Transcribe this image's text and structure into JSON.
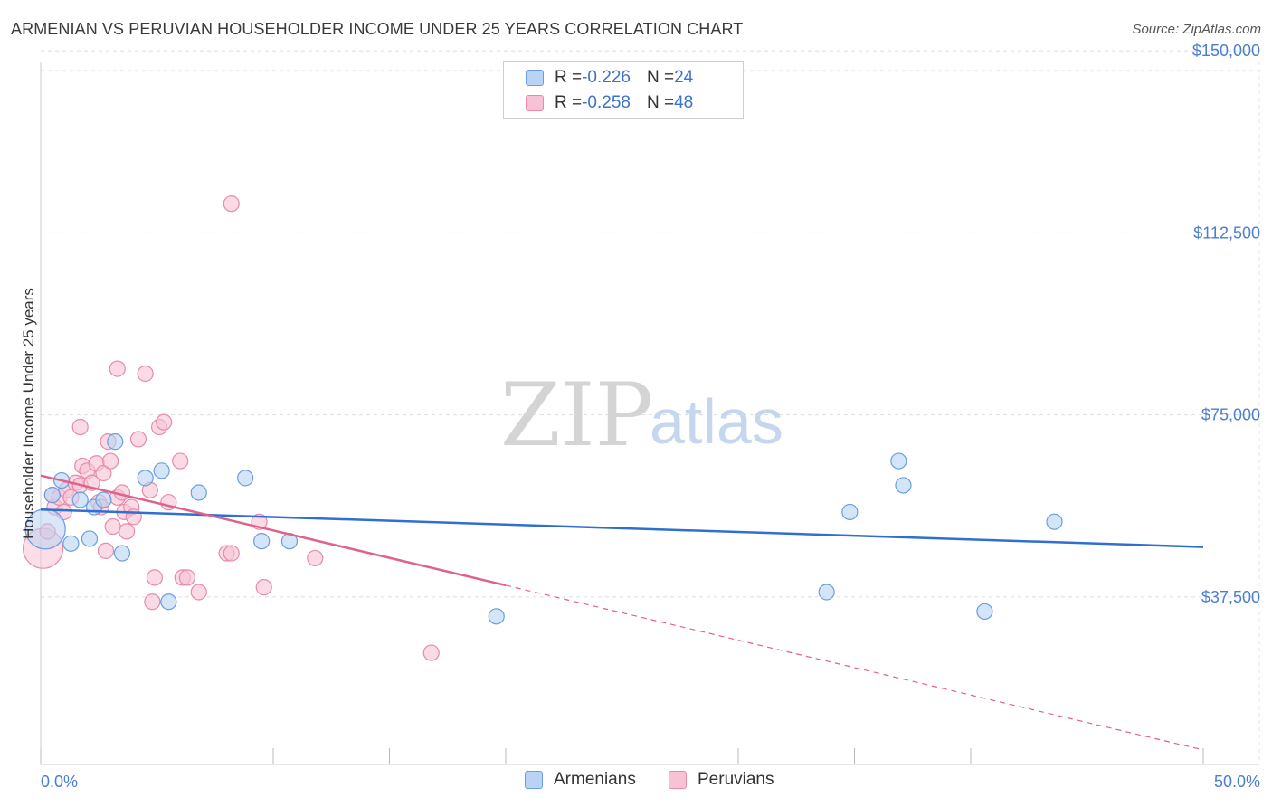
{
  "title": "ARMENIAN VS PERUVIAN HOUSEHOLDER INCOME UNDER 25 YEARS CORRELATION CHART",
  "source": "Source: ZipAtlas.com",
  "watermark": {
    "zip": "ZIP",
    "atlas": "atlas"
  },
  "legend": {
    "armenians": {
      "r_label": "R = ",
      "r_value": "-0.226",
      "n_label": "N = ",
      "n_value": "24"
    },
    "peruvians": {
      "r_label": "R = ",
      "r_value": "-0.258",
      "n_label": "N = ",
      "n_value": "48"
    }
  },
  "colors": {
    "armenian_fill": "#b9d3f3",
    "armenian_stroke": "#6a9ee0",
    "armenian_line": "#2f6fd0",
    "peruvian_fill": "#f7c3d4",
    "peruvian_stroke": "#e88aa8",
    "peruvian_line": "#e0628c",
    "tick_text": "#4a7fd0",
    "grid": "#dddddd"
  },
  "chart_data": {
    "type": "scatter",
    "title": "ARMENIAN VS PERUVIAN HOUSEHOLDER INCOME UNDER 25 YEARS CORRELATION CHART",
    "xlabel": "",
    "ylabel": "Householder Income Under 25 years",
    "xlim": [
      0,
      50
    ],
    "ylim": [
      3000,
      153000
    ],
    "x_tick_labels": [
      "0.0%",
      "50.0%"
    ],
    "y_ticks": [
      37500,
      75000,
      112500,
      150000
    ],
    "y_tick_labels": [
      "$37,500",
      "$75,000",
      "$112,500",
      "$150,000"
    ],
    "grid": true,
    "series": [
      {
        "name": "Armenians",
        "r": -0.226,
        "n": 24,
        "points": [
          [
            0.2,
            51500,
            "big"
          ],
          [
            0.5,
            58500
          ],
          [
            0.9,
            61500
          ],
          [
            1.3,
            48500
          ],
          [
            1.7,
            57500
          ],
          [
            2.1,
            49500
          ],
          [
            2.3,
            56000
          ],
          [
            2.7,
            57500
          ],
          [
            3.2,
            69500
          ],
          [
            3.5,
            46500
          ],
          [
            4.5,
            62000
          ],
          [
            5.2,
            63500
          ],
          [
            6.8,
            59000
          ],
          [
            8.8,
            62000
          ],
          [
            9.5,
            49000
          ],
          [
            10.7,
            49000
          ],
          [
            5.5,
            36500
          ],
          [
            19.6,
            33500
          ],
          [
            33.8,
            38500
          ],
          [
            34.8,
            55000
          ],
          [
            36.9,
            65500
          ],
          [
            37.1,
            60500
          ],
          [
            40.6,
            34500
          ],
          [
            43.6,
            53000
          ]
        ],
        "trend": {
          "x": [
            0,
            50
          ],
          "y": [
            55500,
            47800
          ],
          "dashed_from": null
        }
      },
      {
        "name": "Peruvians",
        "r": -0.258,
        "n": 48,
        "points": [
          [
            0.1,
            47500,
            "big"
          ],
          [
            0.3,
            51000
          ],
          [
            0.5,
            58500
          ],
          [
            0.6,
            56000
          ],
          [
            0.8,
            58000
          ],
          [
            1.0,
            55000
          ],
          [
            1.1,
            59500
          ],
          [
            1.3,
            58000
          ],
          [
            1.5,
            61000
          ],
          [
            1.7,
            60500
          ],
          [
            1.7,
            72500
          ],
          [
            1.8,
            64500
          ],
          [
            2.0,
            63500
          ],
          [
            2.2,
            61000
          ],
          [
            2.4,
            65000
          ],
          [
            2.5,
            57000
          ],
          [
            2.6,
            56000
          ],
          [
            2.7,
            63000
          ],
          [
            2.8,
            47000
          ],
          [
            2.9,
            69500
          ],
          [
            3.0,
            65500
          ],
          [
            3.1,
            52000
          ],
          [
            3.3,
            84500
          ],
          [
            3.3,
            58000
          ],
          [
            3.5,
            59000
          ],
          [
            3.6,
            55000
          ],
          [
            3.7,
            51000
          ],
          [
            3.9,
            56000
          ],
          [
            4.0,
            54000
          ],
          [
            4.2,
            70000
          ],
          [
            4.5,
            83500
          ],
          [
            4.7,
            59500
          ],
          [
            4.8,
            36500
          ],
          [
            4.9,
            41500
          ],
          [
            5.1,
            72500
          ],
          [
            5.3,
            73500
          ],
          [
            5.5,
            57000
          ],
          [
            6.0,
            65500
          ],
          [
            6.1,
            41500
          ],
          [
            6.3,
            41500
          ],
          [
            6.8,
            38500
          ],
          [
            8.0,
            46500
          ],
          [
            8.2,
            46500
          ],
          [
            8.2,
            118500
          ],
          [
            9.4,
            53000
          ],
          [
            9.6,
            39500
          ],
          [
            11.8,
            45500
          ],
          [
            16.8,
            26000
          ]
        ],
        "trend": {
          "x": [
            0,
            50
          ],
          "y": [
            62500,
            6000
          ],
          "dashed_from": 20
        }
      }
    ]
  }
}
